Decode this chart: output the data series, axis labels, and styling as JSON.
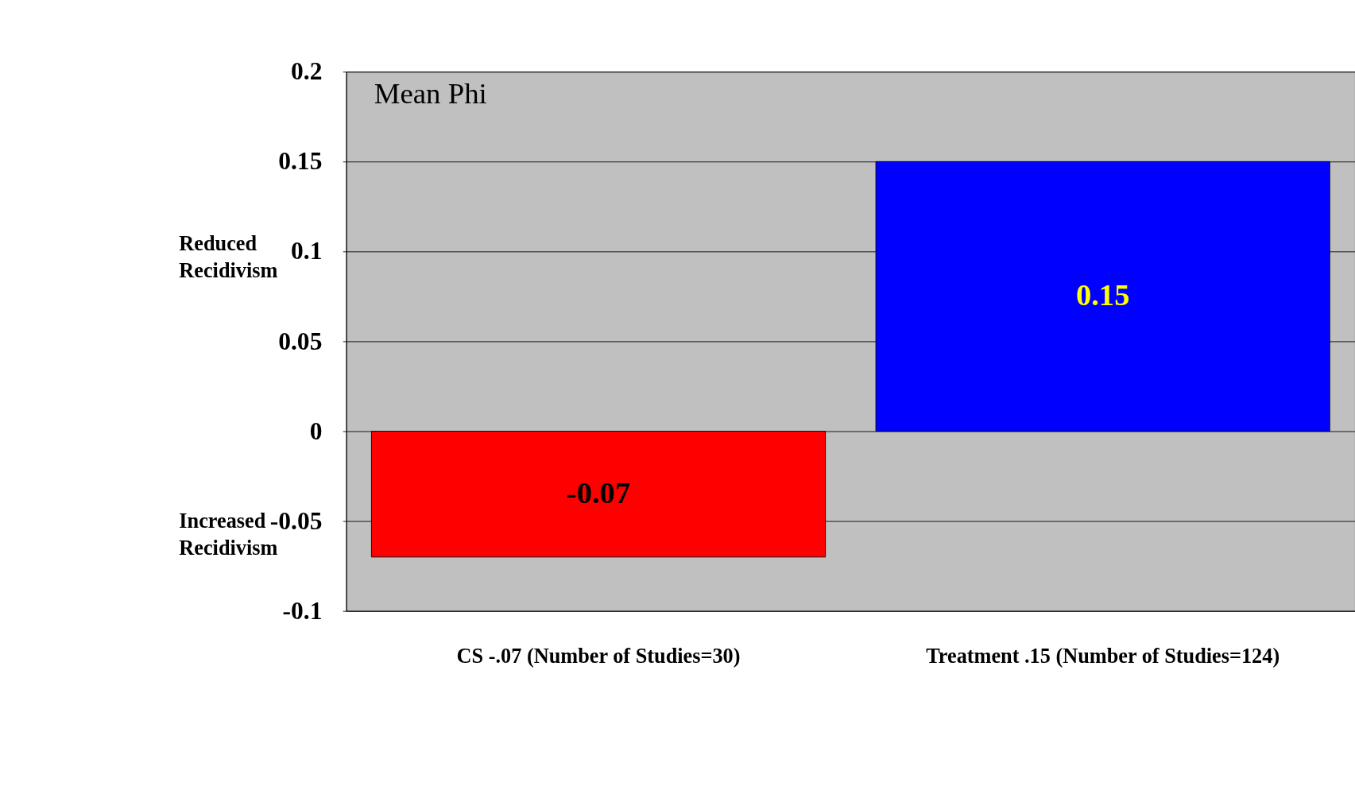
{
  "chart_data": {
    "type": "bar",
    "categories": [
      "CS -.07 (Number of Studies=30)",
      "Treatment .15 (Number of Studies=124)"
    ],
    "values": [
      -0.07,
      0.15
    ],
    "colors": [
      "#ff0000",
      "#0000ff"
    ],
    "ylim": [
      -0.1,
      0.2
    ],
    "yticks": [
      -0.1,
      -0.05,
      0,
      0.05,
      0.1,
      0.15,
      0.2
    ],
    "grid": "y",
    "data_labels": true,
    "annotations": [
      "Mean Phi",
      "Reduced Recidivism",
      "Increased Recidivism"
    ]
  }
}
